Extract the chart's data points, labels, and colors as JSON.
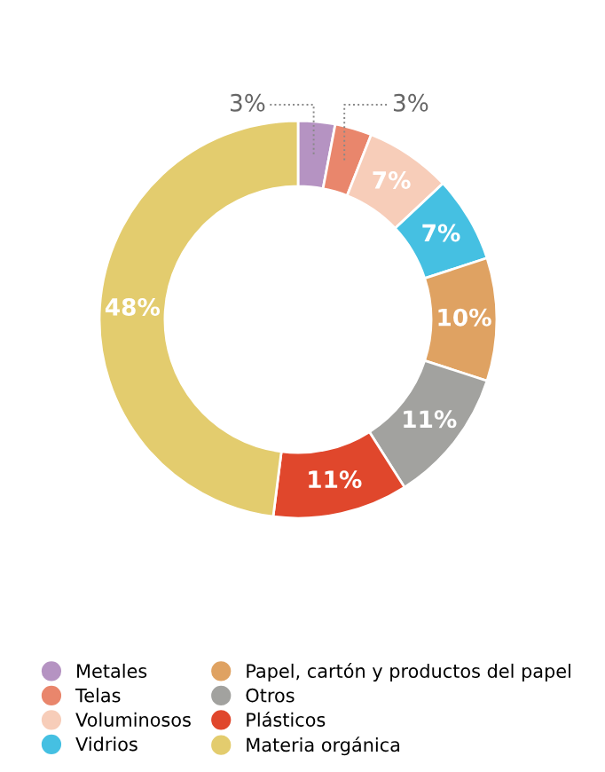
{
  "chart_data": {
    "type": "donut",
    "categories": [
      "Metales",
      "Telas",
      "Voluminosos",
      "Vidrios",
      "Papel, cartón y productos del papel",
      "Otros",
      "Plásticos",
      "Materia orgánica"
    ],
    "values": [
      3,
      3,
      7,
      7,
      10,
      11,
      11,
      48
    ],
    "colors": [
      "#b593c2",
      "#e9866c",
      "#f7cdb9",
      "#45c0e2",
      "#dfa262",
      "#a2a29f",
      "#e0472c",
      "#e3cc6e"
    ],
    "value_labels": [
      "3%",
      "3%",
      "7%",
      "7%",
      "10%",
      "11%",
      "11%",
      "48%"
    ],
    "legend": "bottom"
  }
}
